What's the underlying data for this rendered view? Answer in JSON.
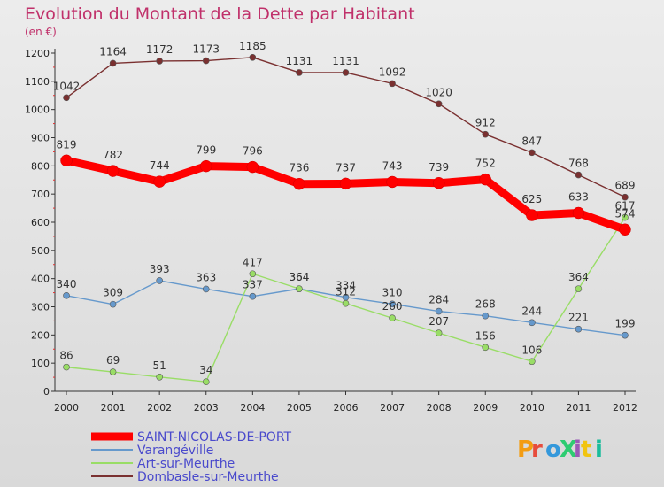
{
  "chart_data": {
    "type": "line",
    "title": "Evolution du Montant de la Dette par Habitant",
    "subtitle": "(en €)",
    "x": [
      "2000",
      "2001",
      "2002",
      "2003",
      "2004",
      "2005",
      "2006",
      "2007",
      "2008",
      "2009",
      "2010",
      "2011",
      "2012"
    ],
    "ylim": [
      0,
      1200
    ],
    "yticks": [
      0,
      100,
      200,
      300,
      400,
      500,
      600,
      700,
      800,
      900,
      1000,
      1100,
      1200
    ],
    "grid": false,
    "legend_position": "bottom-left",
    "series": [
      {
        "name": "SAINT-NICOLAS-DE-PORT",
        "color": "#ff0000",
        "emphasis": true,
        "values": [
          819,
          782,
          744,
          799,
          796,
          736,
          737,
          743,
          739,
          752,
          625,
          633,
          574
        ]
      },
      {
        "name": "Varangéville",
        "color": "#6699cc",
        "values": [
          340,
          309,
          393,
          363,
          337,
          364,
          334,
          310,
          284,
          268,
          244,
          221,
          199
        ]
      },
      {
        "name": "Art-sur-Meurthe",
        "color": "#99dd66",
        "values": [
          86,
          69,
          51,
          34,
          417,
          364,
          312,
          260,
          207,
          156,
          106,
          364,
          617
        ]
      },
      {
        "name": "Dombasle-sur-Meurthe",
        "color": "#7a3030",
        "values": [
          1042,
          1164,
          1172,
          1173,
          1185,
          1131,
          1131,
          1092,
          1020,
          912,
          847,
          768,
          689
        ]
      }
    ],
    "labels": {
      "SAINT-NICOLAS-DE-PORT": [
        "819",
        "782",
        "744",
        "799",
        "796",
        "736",
        "737",
        "743",
        "739",
        "752",
        "625",
        "633",
        "574"
      ],
      "Varangéville": [
        "340",
        "309",
        "393",
        "363",
        "337",
        "364",
        "334",
        "310",
        "284",
        "268",
        "244",
        "221",
        "199"
      ],
      "Art-sur-Meurthe": [
        "86",
        "69",
        "51",
        "34",
        "417",
        "364",
        "312",
        "260",
        "207",
        "156",
        "106",
        "364",
        "617"
      ],
      "Dombasle-sur-Meurthe": [
        "1042",
        "1164",
        "1172",
        "1173",
        "1185",
        "1131",
        "1131",
        "1092",
        "1020",
        "912",
        "847",
        "768",
        "689"
      ]
    }
  },
  "colors": {
    "title": "#c0306a",
    "legend_text": "#4a4acc",
    "axis": "#333333",
    "logo_letters": [
      "#f39c12",
      "#e74c3c",
      "#3498db",
      "#2ecc71",
      "#9b59b6",
      "#f1c40f",
      "#1abc9c"
    ]
  },
  "logo": {
    "text": "ProXiti",
    "icon": "proxiti-logo"
  }
}
